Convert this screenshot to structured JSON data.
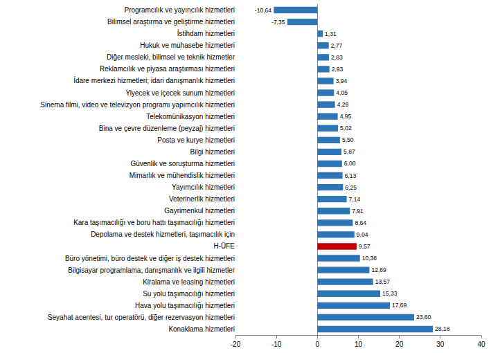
{
  "chart_data": {
    "type": "bar",
    "orientation": "horizontal",
    "categories": [
      "Programcılık ve yayıncılık hizmetleri",
      "Bilimsel araştırma ve geliştirme hizmetleri",
      "İstihdam hizmetleri",
      "Hukuk ve muhasebe hizmetleri",
      "Diğer mesleki, bilimsel ve teknik hizmetler",
      "Reklamcılık ve piyasa araştırması hizmetleri",
      "İdare merkezi hizmetleri; idari danışmanlık hizmetleri",
      "Yiyecek ve içecek sunum hizmetleri",
      "Sinema filmi, video ve televizyon programı yapımcılık hizmetleri",
      "Telekomünikasyon hizmetleri",
      "Bina ve çevre düzenleme (peyzaj) hizmetleri",
      "Posta ve kurye hizmetleri",
      "Bilgi hizmetleri",
      "Güvenlik ve soruşturma hizmetleri",
      "Mimarlık ve mühendislik hizmetleri",
      "Yayımcılık hizmetleri",
      "Veterinerlik hizmetleri",
      "Gayrimenkul hizmetleri",
      "Kara taşımacılığı ve boru hattı taşımacılığı hizmetleri",
      "Depolama ve destek hizmetleri, taşımacılık için",
      "H-ÜFE",
      "Büro yönetimi, büro destek ve diğer iş destek hizmetleri",
      "Bilgisayar programlama, danışmanlık ve ilgili hizmetler",
      "Kiralama ve leasing hizmetleri",
      "Su yolu taşımacılığı hizmetleri",
      "Hava yolu taşımacılığı hizmetleri",
      "Seyahat acentesi, tur operatörü, diğer rezervasyon hizmetleri",
      "Konaklama hizmetleri"
    ],
    "values": [
      -10.64,
      -7.35,
      1.31,
      2.77,
      2.83,
      2.93,
      3.94,
      4.05,
      4.29,
      4.95,
      5.02,
      5.5,
      5.87,
      6.0,
      6.13,
      6.25,
      7.14,
      7.91,
      8.64,
      9.04,
      9.57,
      10.38,
      12.69,
      13.57,
      15.33,
      17.69,
      23.6,
      28.18
    ],
    "value_labels": [
      "-10,64",
      "-7,35",
      "1,31",
      "2,77",
      "2,83",
      "2,93",
      "3,94",
      "4,05",
      "4,29",
      "4,95",
      "5,02",
      "5,50",
      "5,87",
      "6,00",
      "6,13",
      "6,25",
      "7,14",
      "7,91",
      "8,64",
      "9,04",
      "9,57",
      "10,38",
      "12,69",
      "13,57",
      "15,33",
      "17,69",
      "23,60",
      "28,18"
    ],
    "colors": [
      "#2e75b6",
      "#2e75b6",
      "#2e75b6",
      "#2e75b6",
      "#2e75b6",
      "#2e75b6",
      "#2e75b6",
      "#2e75b6",
      "#2e75b6",
      "#2e75b6",
      "#2e75b6",
      "#2e75b6",
      "#2e75b6",
      "#2e75b6",
      "#2e75b6",
      "#2e75b6",
      "#2e75b6",
      "#2e75b6",
      "#2e75b6",
      "#2e75b6",
      "#c00000",
      "#2e75b6",
      "#2e75b6",
      "#2e75b6",
      "#2e75b6",
      "#2e75b6",
      "#2e75b6",
      "#2e75b6"
    ],
    "xlim": [
      -20,
      40
    ],
    "xticks": [
      -20,
      -10,
      0,
      10,
      20,
      30,
      40
    ],
    "grid": false,
    "data_labels": true
  }
}
